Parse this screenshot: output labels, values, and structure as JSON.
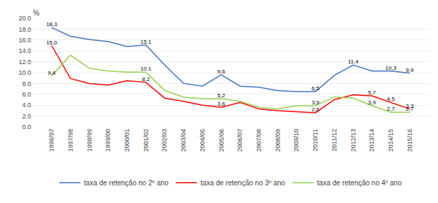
{
  "chart_data": {
    "type": "line",
    "ylabel": "%",
    "categories": [
      "1996/97",
      "1997/98",
      "1998/99",
      "1999/00",
      "2000/01",
      "2001/02",
      "2002/03",
      "2003/04",
      "2004/05",
      "2005/06",
      "2006/07",
      "2007/08",
      "2008/09",
      "2009/10",
      "2010/11",
      "2011/12",
      "2012/13",
      "2013/14",
      "2014/15",
      "2015/16"
    ],
    "series": [
      {
        "name": "taxa de retenção no 2º ano",
        "color": "#4472C4",
        "values": [
          18.3,
          16.7,
          16.1,
          15.7,
          14.8,
          15.1,
          11.4,
          8.0,
          7.5,
          9.6,
          7.5,
          7.3,
          6.7,
          6.5,
          6.5,
          9.5,
          11.4,
          10.3,
          10.3,
          9.9
        ],
        "value_labels": [
          "18,3",
          null,
          null,
          null,
          null,
          "15,1",
          null,
          null,
          null,
          "9,6",
          null,
          null,
          null,
          null,
          "6,5",
          null,
          "11,4",
          null,
          "10,3",
          "9,9"
        ]
      },
      {
        "name": "taxa de retenção no 3º ano",
        "color": "#FF0000",
        "values": [
          15.0,
          8.9,
          8.0,
          7.7,
          8.5,
          8.2,
          5.3,
          4.7,
          4.0,
          3.6,
          4.5,
          3.3,
          3.0,
          2.8,
          2.6,
          5.0,
          5.9,
          5.7,
          4.5,
          3.3
        ],
        "value_labels": [
          "15,0",
          null,
          null,
          null,
          null,
          "8,2",
          null,
          null,
          null,
          "3,6",
          null,
          null,
          null,
          null,
          "2,6",
          null,
          null,
          "5,7",
          "4,5",
          "3,3"
        ]
      },
      {
        "name": "taxa de retenção no 4º ano",
        "color": "#92D050",
        "values": [
          9.4,
          13.2,
          10.8,
          10.3,
          10.1,
          10.1,
          6.7,
          5.5,
          5.2,
          5.2,
          4.7,
          3.6,
          3.3,
          3.9,
          3.9,
          5.5,
          5.3,
          3.9,
          2.7,
          2.7
        ],
        "value_labels": [
          "9,4",
          null,
          null,
          null,
          null,
          "10,1",
          null,
          null,
          null,
          "5,2",
          null,
          null,
          null,
          null,
          "3,9",
          null,
          null,
          "3,9",
          "2,7",
          "2,7"
        ]
      }
    ],
    "ylim": [
      0.0,
      20.0
    ],
    "yticks": [
      {
        "value": 0.0,
        "label": "0.0"
      },
      {
        "value": 2.0,
        "label": "2.0"
      },
      {
        "value": 4.0,
        "label": "4.0"
      },
      {
        "value": 6.0,
        "label": "6.0"
      },
      {
        "value": 8.0,
        "label": "8.0"
      },
      {
        "value": 10.0,
        "label": "10.0"
      },
      {
        "value": 12.0,
        "label": "12.0"
      },
      {
        "value": 14.0,
        "label": "14.0"
      },
      {
        "value": 16.0,
        "label": "16.0"
      },
      {
        "value": 18.0,
        "label": "18.0"
      },
      {
        "value": 20.0,
        "label": "20.0"
      }
    ],
    "grid": true,
    "data_labels": true,
    "legend": "bottom"
  }
}
